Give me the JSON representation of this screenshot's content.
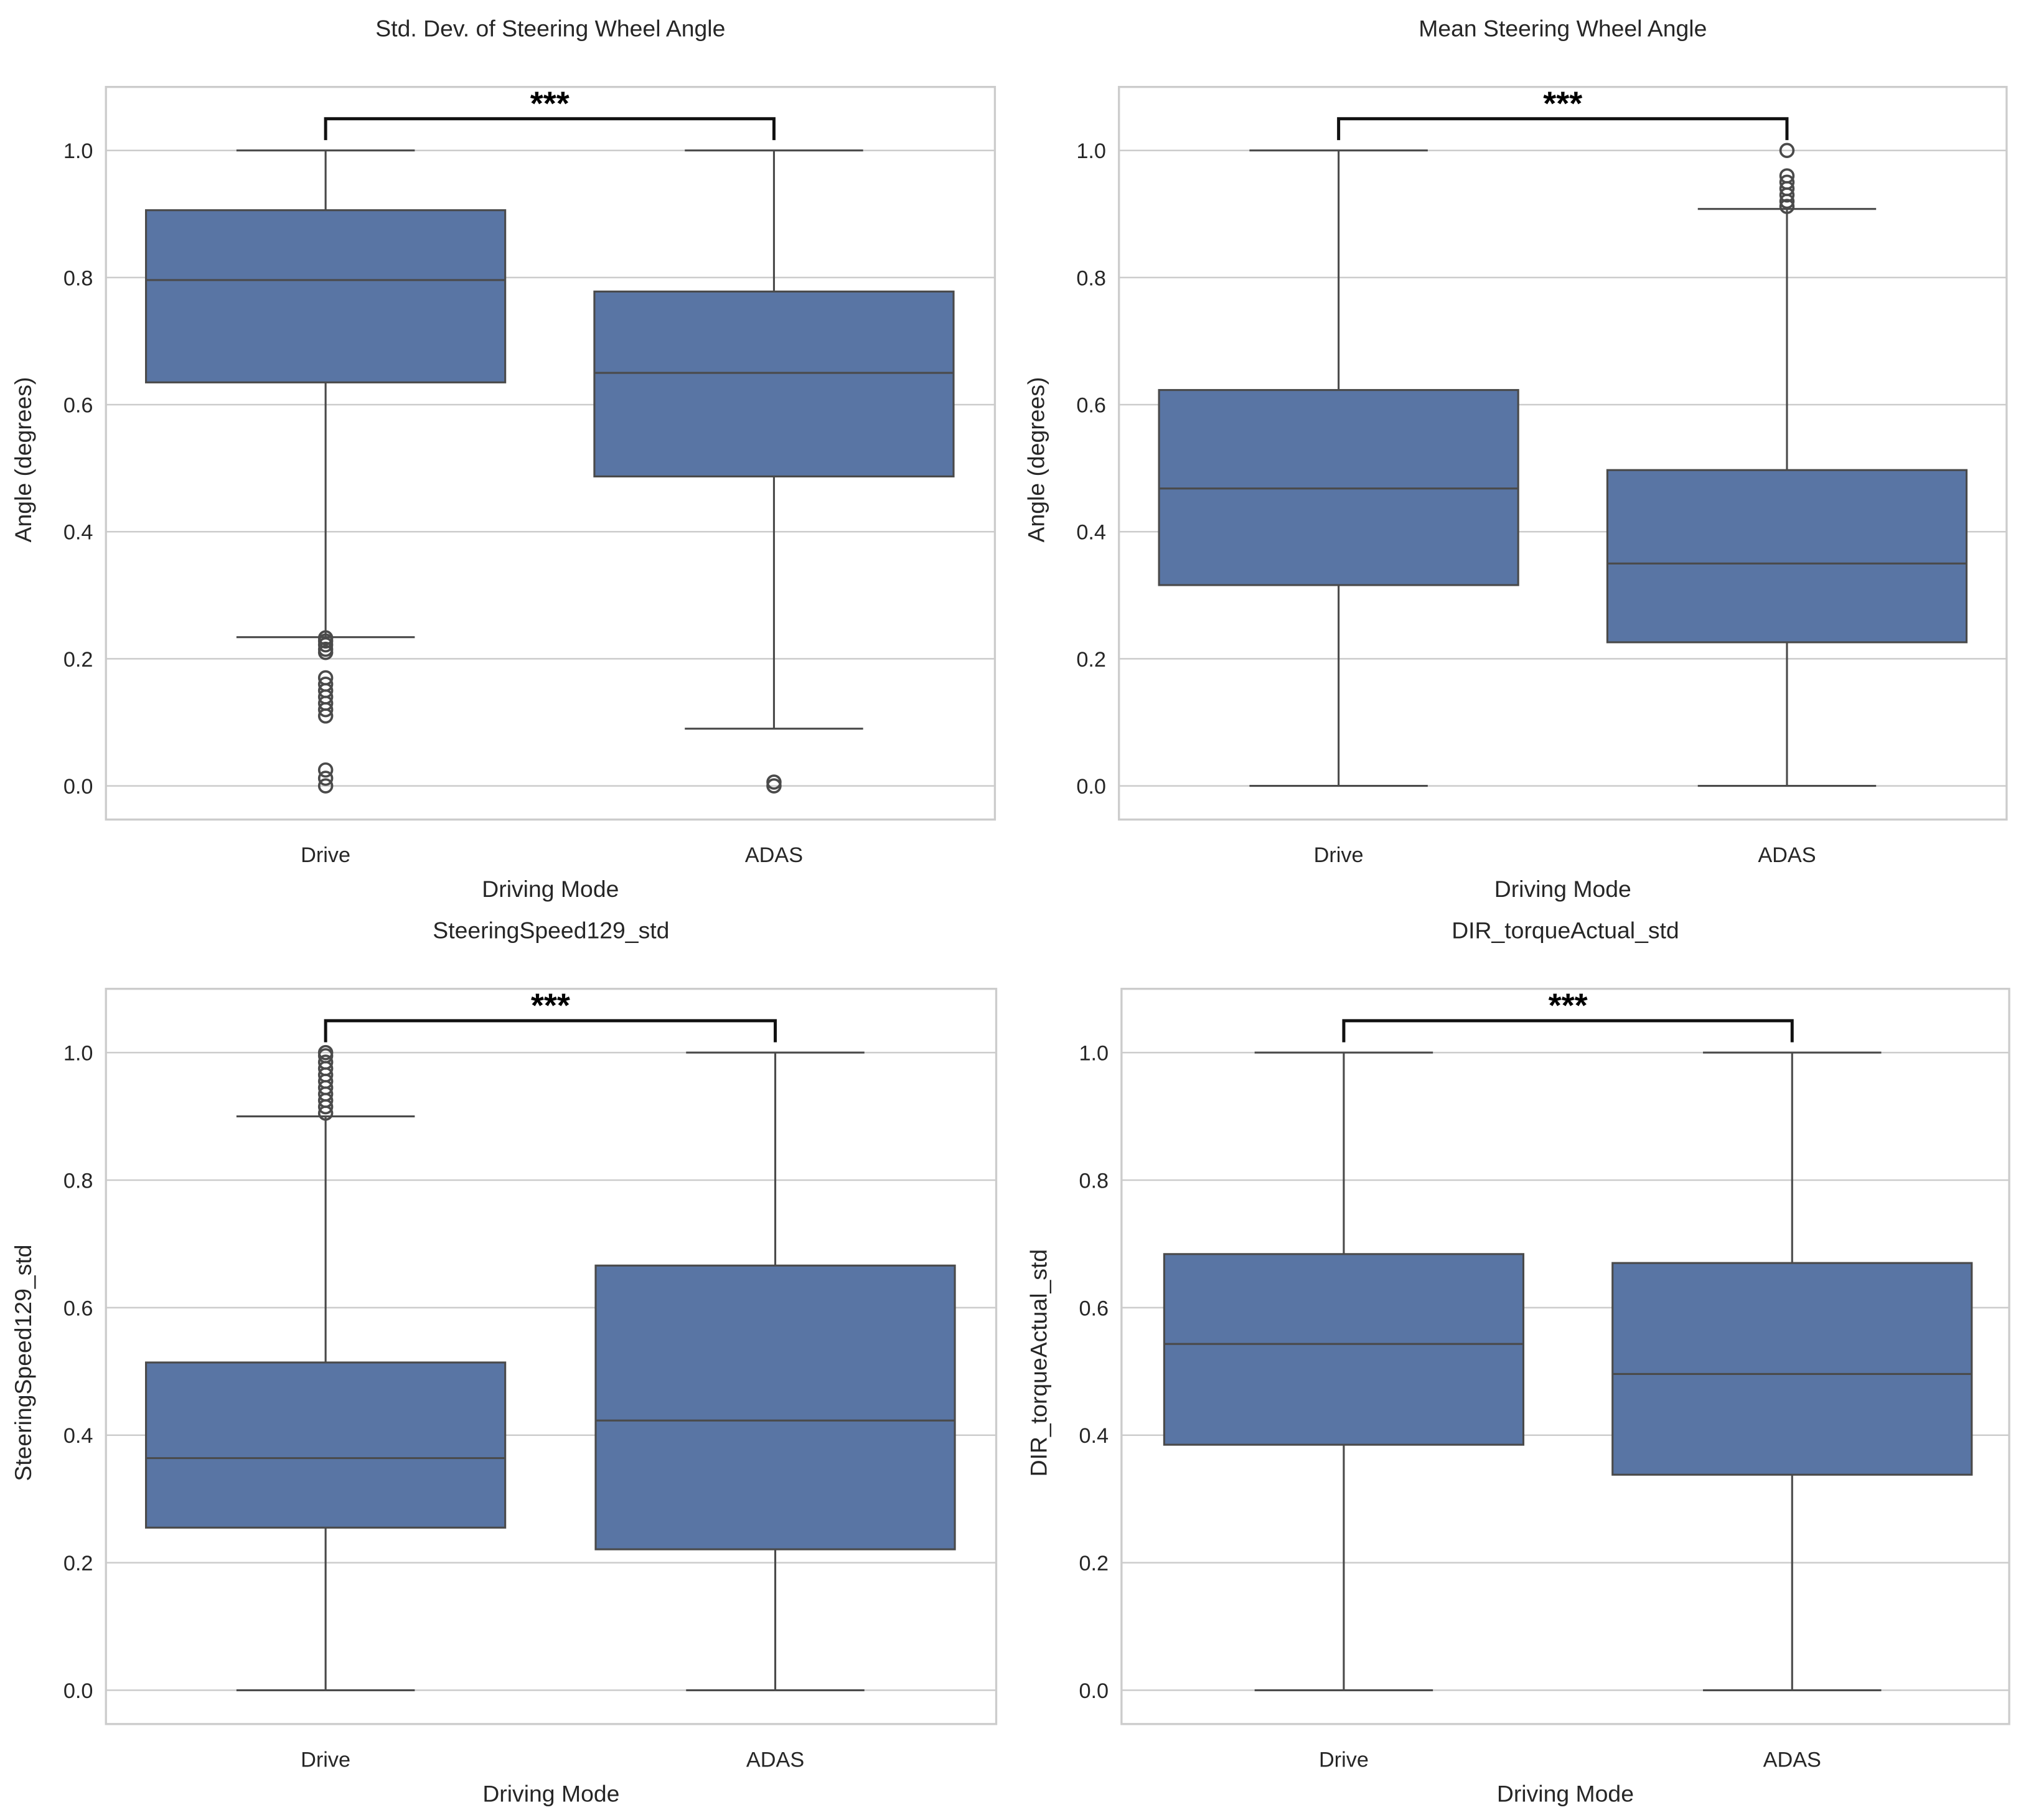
{
  "chart_data": [
    {
      "type": "box",
      "title": "Std. Dev. of Steering Wheel Angle",
      "xlabel": "Driving Mode",
      "ylabel": "Angle (degrees)",
      "categories": [
        "Drive",
        "ADAS"
      ],
      "ylim": [
        -0.053,
        1.1
      ],
      "yticks": [
        "0.0",
        "0.2",
        "0.4",
        "0.6",
        "0.8",
        "1.0"
      ],
      "grid": true,
      "significance": "***",
      "boxes": [
        {
          "whisker_low": 0.234,
          "q1": 0.635,
          "median": 0.796,
          "q3": 0.906,
          "whisker_high": 1.0,
          "outliers": [
            0.233,
            0.228,
            0.222,
            0.215,
            0.21,
            0.17,
            0.16,
            0.15,
            0.14,
            0.13,
            0.12,
            0.11,
            0.025,
            0.012,
            0.0
          ]
        },
        {
          "whisker_low": 0.09,
          "q1": 0.487,
          "median": 0.65,
          "q3": 0.778,
          "whisker_high": 1.0,
          "outliers": [
            0.006,
            0.0
          ]
        }
      ]
    },
    {
      "type": "box",
      "title": "Mean Steering Wheel Angle",
      "xlabel": "Driving Mode",
      "ylabel": "Angle (degrees)",
      "categories": [
        "Drive",
        "ADAS"
      ],
      "ylim": [
        -0.053,
        1.1
      ],
      "yticks": [
        "0.0",
        "0.2",
        "0.4",
        "0.6",
        "0.8",
        "1.0"
      ],
      "grid": true,
      "significance": "***",
      "boxes": [
        {
          "whisker_low": 0.0,
          "q1": 0.316,
          "median": 0.468,
          "q3": 0.623,
          "whisker_high": 1.0,
          "outliers": []
        },
        {
          "whisker_low": 0.0,
          "q1": 0.226,
          "median": 0.35,
          "q3": 0.497,
          "whisker_high": 0.908,
          "outliers": [
            0.912,
            0.92,
            0.93,
            0.94,
            0.95,
            0.96,
            1.0
          ]
        }
      ]
    },
    {
      "type": "box",
      "title": "SteeringSpeed129_std",
      "xlabel": "Driving Mode",
      "ylabel": "SteeringSpeed129_std",
      "categories": [
        "Drive",
        "ADAS"
      ],
      "ylim": [
        -0.053,
        1.1
      ],
      "yticks": [
        "0.0",
        "0.2",
        "0.4",
        "0.6",
        "0.8",
        "1.0"
      ],
      "grid": true,
      "significance": "***",
      "boxes": [
        {
          "whisker_low": 0.0,
          "q1": 0.255,
          "median": 0.364,
          "q3": 0.514,
          "whisker_high": 0.9,
          "outliers": [
            0.905,
            0.915,
            0.925,
            0.935,
            0.945,
            0.955,
            0.965,
            0.975,
            0.985,
            0.995,
            1.0
          ]
        },
        {
          "whisker_low": 0.0,
          "q1": 0.221,
          "median": 0.423,
          "q3": 0.666,
          "whisker_high": 1.0,
          "outliers": []
        }
      ]
    },
    {
      "type": "box",
      "title": "DIR_torqueActual_std",
      "xlabel": "Driving Mode",
      "ylabel": "DIR_torqueActual_std",
      "categories": [
        "Drive",
        "ADAS"
      ],
      "ylim": [
        -0.053,
        1.1
      ],
      "yticks": [
        "0.0",
        "0.2",
        "0.4",
        "0.6",
        "0.8",
        "1.0"
      ],
      "grid": true,
      "significance": "***",
      "boxes": [
        {
          "whisker_low": 0.0,
          "q1": 0.385,
          "median": 0.543,
          "q3": 0.684,
          "whisker_high": 1.0,
          "outliers": []
        },
        {
          "whisker_low": 0.0,
          "q1": 0.338,
          "median": 0.496,
          "q3": 0.67,
          "whisker_high": 1.0,
          "outliers": []
        }
      ]
    }
  ],
  "colors": {
    "box_fill": "#5975a4",
    "line": "#4a4a4a",
    "grid": "#cccccc",
    "frame": "#cccccc",
    "bracket": "#111111"
  }
}
